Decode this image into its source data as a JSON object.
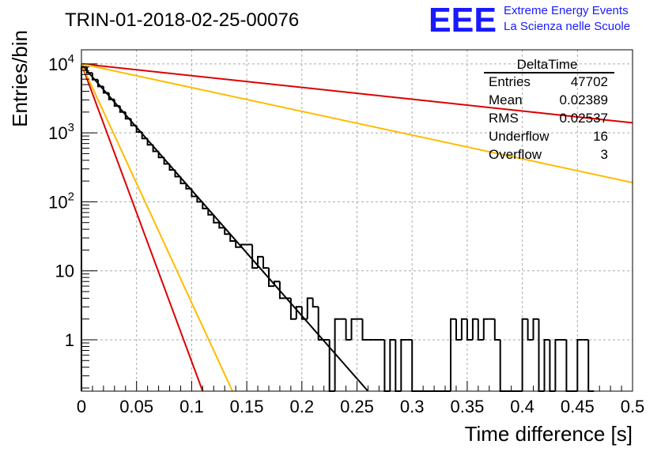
{
  "header": {
    "run_title": "TRIN-01-2018-02-25-00076",
    "logo_text": "EEE",
    "logo_line1": "Extreme Energy Events",
    "logo_line2": "La Scienza nelle Scuole",
    "logo_color": "#1a1aff"
  },
  "stats_box": {
    "title": "DeltaTime",
    "rows": [
      {
        "label": "Entries",
        "value": "47702"
      },
      {
        "label": "Mean",
        "value": "0.02389"
      },
      {
        "label": "RMS",
        "value": "0.02537"
      },
      {
        "label": "Underflow",
        "value": "16"
      },
      {
        "label": "Overflow",
        "value": "3"
      }
    ]
  },
  "chart_data": {
    "type": "histogram",
    "title": "TRIN-01-2018-02-25-00076",
    "xlabel": "Time difference [s]",
    "ylabel": "Entries/bin",
    "xlim": [
      0,
      0.5
    ],
    "ylim": [
      0.18,
      16000
    ],
    "yscale": "log",
    "grid": true,
    "x_ticks": [
      "0",
      "0.05",
      "0.1",
      "0.15",
      "0.2",
      "0.25",
      "0.3",
      "0.35",
      "0.4",
      "0.45",
      "0.5"
    ],
    "y_ticks": [
      {
        "base": "10",
        "exp": "4",
        "value": 10000
      },
      {
        "base": "10",
        "exp": "3",
        "value": 1000
      },
      {
        "base": "10",
        "exp": "2",
        "value": 100
      },
      {
        "base": "10",
        "exp": "",
        "value": 10
      },
      {
        "base": "1",
        "exp": "",
        "value": 1
      }
    ],
    "histogram": {
      "bin_width": 0.005,
      "bins": [
        {
          "x": 0.0,
          "y": 9000
        },
        {
          "x": 0.005,
          "y": 7400
        },
        {
          "x": 0.01,
          "y": 5900
        },
        {
          "x": 0.015,
          "y": 4700
        },
        {
          "x": 0.02,
          "y": 3800
        },
        {
          "x": 0.025,
          "y": 3050
        },
        {
          "x": 0.03,
          "y": 2450
        },
        {
          "x": 0.035,
          "y": 2000
        },
        {
          "x": 0.04,
          "y": 1600
        },
        {
          "x": 0.045,
          "y": 1280
        },
        {
          "x": 0.05,
          "y": 1030
        },
        {
          "x": 0.055,
          "y": 830
        },
        {
          "x": 0.06,
          "y": 670
        },
        {
          "x": 0.065,
          "y": 540
        },
        {
          "x": 0.07,
          "y": 440
        },
        {
          "x": 0.075,
          "y": 355
        },
        {
          "x": 0.08,
          "y": 290
        },
        {
          "x": 0.085,
          "y": 232
        },
        {
          "x": 0.09,
          "y": 185
        },
        {
          "x": 0.095,
          "y": 155
        },
        {
          "x": 0.1,
          "y": 120
        },
        {
          "x": 0.105,
          "y": 100
        },
        {
          "x": 0.11,
          "y": 80
        },
        {
          "x": 0.115,
          "y": 65
        },
        {
          "x": 0.12,
          "y": 50
        },
        {
          "x": 0.125,
          "y": 42
        },
        {
          "x": 0.13,
          "y": 34
        },
        {
          "x": 0.135,
          "y": 27
        },
        {
          "x": 0.14,
          "y": 22
        },
        {
          "x": 0.145,
          "y": 24
        },
        {
          "x": 0.15,
          "y": 24
        },
        {
          "x": 0.155,
          "y": 11
        },
        {
          "x": 0.16,
          "y": 16
        },
        {
          "x": 0.165,
          "y": 11
        },
        {
          "x": 0.17,
          "y": 6
        },
        {
          "x": 0.175,
          "y": 7
        },
        {
          "x": 0.18,
          "y": 4
        },
        {
          "x": 0.185,
          "y": 4
        },
        {
          "x": 0.19,
          "y": 2
        },
        {
          "x": 0.195,
          "y": 3
        },
        {
          "x": 0.2,
          "y": 2
        },
        {
          "x": 0.205,
          "y": 4
        },
        {
          "x": 0.21,
          "y": 3
        },
        {
          "x": 0.215,
          "y": 1
        },
        {
          "x": 0.22,
          "y": 1
        },
        {
          "x": 0.225,
          "y": 0
        },
        {
          "x": 0.23,
          "y": 2
        },
        {
          "x": 0.235,
          "y": 2
        },
        {
          "x": 0.24,
          "y": 1
        },
        {
          "x": 0.245,
          "y": 2
        },
        {
          "x": 0.25,
          "y": 2
        },
        {
          "x": 0.255,
          "y": 1
        },
        {
          "x": 0.26,
          "y": 1
        },
        {
          "x": 0.265,
          "y": 1
        },
        {
          "x": 0.27,
          "y": 1
        },
        {
          "x": 0.275,
          "y": 0
        },
        {
          "x": 0.28,
          "y": 1
        },
        {
          "x": 0.285,
          "y": 0
        },
        {
          "x": 0.29,
          "y": 1
        },
        {
          "x": 0.295,
          "y": 1
        },
        {
          "x": 0.3,
          "y": 0
        },
        {
          "x": 0.305,
          "y": 0
        },
        {
          "x": 0.31,
          "y": 0
        },
        {
          "x": 0.315,
          "y": 0
        },
        {
          "x": 0.32,
          "y": 0
        },
        {
          "x": 0.325,
          "y": 0
        },
        {
          "x": 0.33,
          "y": 0
        },
        {
          "x": 0.335,
          "y": 2
        },
        {
          "x": 0.34,
          "y": 1
        },
        {
          "x": 0.345,
          "y": 2
        },
        {
          "x": 0.35,
          "y": 1
        },
        {
          "x": 0.355,
          "y": 2
        },
        {
          "x": 0.36,
          "y": 1
        },
        {
          "x": 0.365,
          "y": 2
        },
        {
          "x": 0.37,
          "y": 2
        },
        {
          "x": 0.375,
          "y": 1
        },
        {
          "x": 0.38,
          "y": 0
        },
        {
          "x": 0.385,
          "y": 0
        },
        {
          "x": 0.39,
          "y": 0
        },
        {
          "x": 0.395,
          "y": 0
        },
        {
          "x": 0.4,
          "y": 2
        },
        {
          "x": 0.405,
          "y": 1
        },
        {
          "x": 0.41,
          "y": 2
        },
        {
          "x": 0.415,
          "y": 0
        },
        {
          "x": 0.42,
          "y": 1
        },
        {
          "x": 0.425,
          "y": 0
        },
        {
          "x": 0.43,
          "y": 1
        },
        {
          "x": 0.435,
          "y": 1
        },
        {
          "x": 0.44,
          "y": 0
        },
        {
          "x": 0.445,
          "y": 0
        },
        {
          "x": 0.45,
          "y": 1
        },
        {
          "x": 0.455,
          "y": 1
        },
        {
          "x": 0.46,
          "y": 0
        }
      ]
    },
    "fits": [
      {
        "color": "#000000",
        "points": [
          {
            "x": 0.0,
            "y": 9800
          },
          {
            "x": 0.26,
            "y": 0.18
          }
        ]
      },
      {
        "color": "#dd0000",
        "points": [
          {
            "x": 0.0,
            "y": 10000
          },
          {
            "x": 0.11,
            "y": 0.18
          }
        ]
      },
      {
        "color": "#ffbb00",
        "points": [
          {
            "x": 0.0,
            "y": 10000
          },
          {
            "x": 0.137,
            "y": 0.18
          }
        ]
      },
      {
        "color": "#dd0000",
        "points": [
          {
            "x": 0.0,
            "y": 10000
          },
          {
            "x": 0.5,
            "y": 1400
          }
        ]
      },
      {
        "color": "#ffbb00",
        "points": [
          {
            "x": 0.0,
            "y": 10000
          },
          {
            "x": 0.5,
            "y": 190
          }
        ]
      }
    ]
  }
}
